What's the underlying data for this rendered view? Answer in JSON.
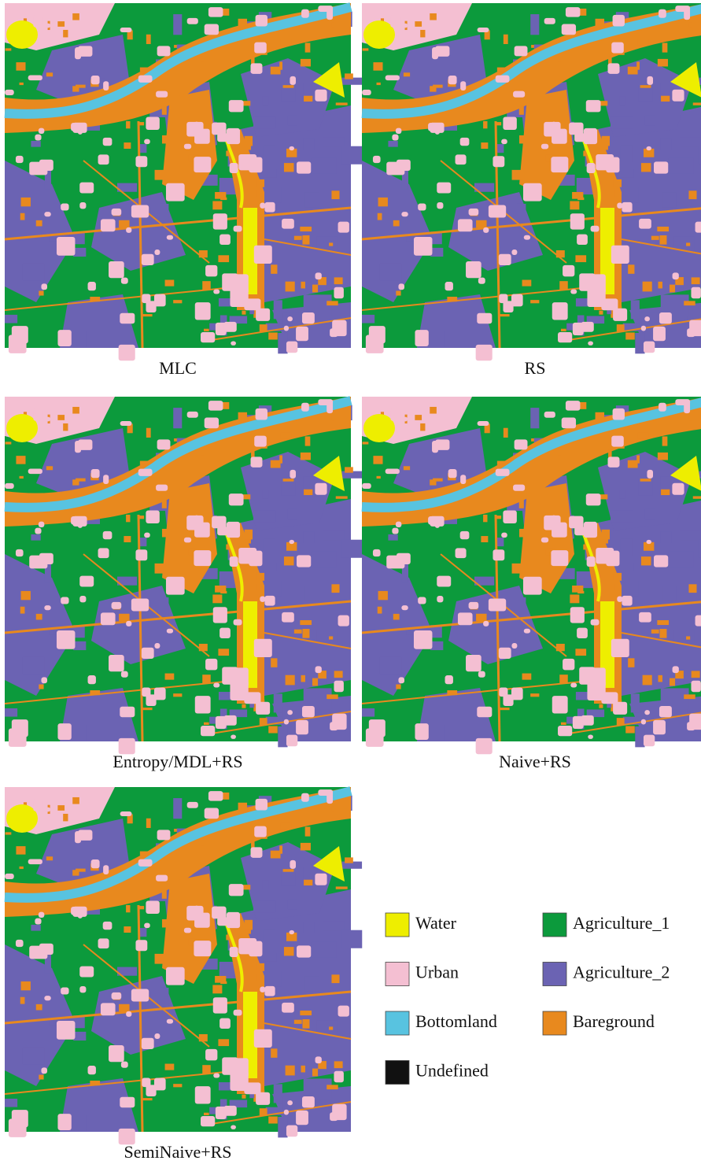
{
  "panels": [
    {
      "caption": "MLC"
    },
    {
      "caption": "RS"
    },
    {
      "caption": "Entropy/MDL+RS"
    },
    {
      "caption": "Naive+RS"
    },
    {
      "caption": "SemiNaive+RS"
    }
  ],
  "legend": [
    {
      "label": "Water",
      "color": "#eeee00"
    },
    {
      "label": "Agriculture_1",
      "color": "#0c9a3c"
    },
    {
      "label": "Urban",
      "color": "#f4bfd2"
    },
    {
      "label": "Agriculture_2",
      "color": "#6b63b3"
    },
    {
      "label": "Bottomland",
      "color": "#58c3e0"
    },
    {
      "label": "Bareground",
      "color": "#e8891e"
    },
    {
      "label": "Undefined",
      "color": "#111111"
    }
  ]
}
